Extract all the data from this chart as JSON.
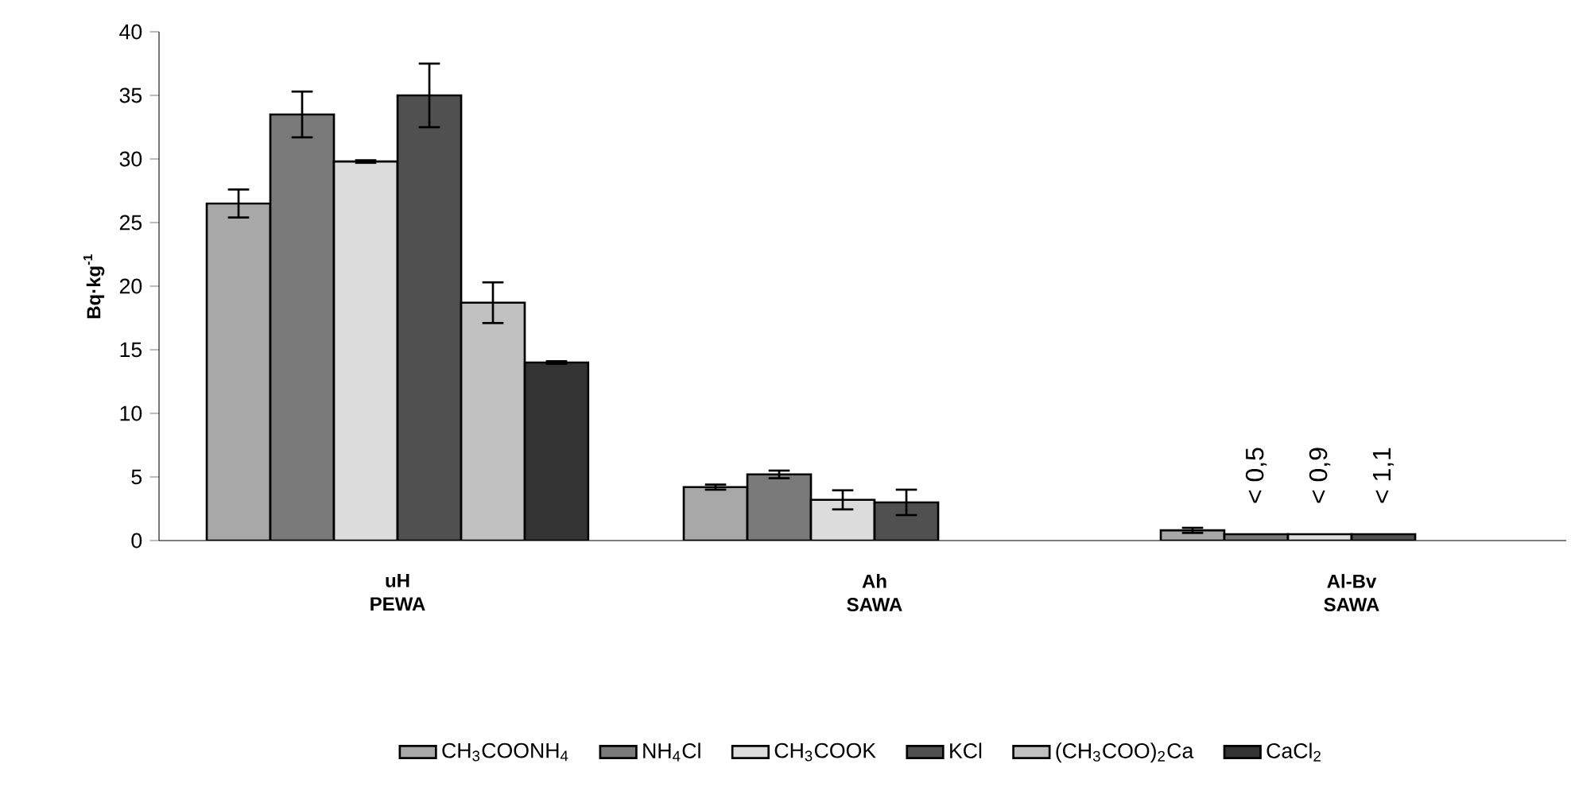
{
  "chart_data": {
    "type": "bar",
    "ylabel": "Bq·kg$^{-1}$",
    "categories": [
      "uH PEWA",
      "Ah SAWA",
      "Al-Bv SAWA"
    ],
    "ylim": [
      0,
      40
    ],
    "yticks": [
      0,
      5,
      10,
      15,
      20,
      25,
      30,
      35,
      40
    ],
    "grid": false,
    "legend": "bottom",
    "series": [
      {
        "name": "CH$_{3}$COONH$_{4}$",
        "color": "#a8a8a8",
        "values": [
          26.5,
          4.2,
          0.8
        ],
        "errors": [
          1.1,
          0.2,
          0.2
        ]
      },
      {
        "name": "NH$_{4}$Cl",
        "color": "#7a7a7a",
        "values": [
          33.5,
          5.2,
          0.5
        ],
        "errors": [
          1.8,
          0.3,
          null
        ],
        "value_labels": [
          null,
          null,
          "< 0,5"
        ]
      },
      {
        "name": "CH$_{3}$COOK",
        "color": "#dcdcdc",
        "values": [
          29.8,
          3.2,
          0.5
        ],
        "errors": [
          0.1,
          0.75,
          null
        ],
        "value_labels": [
          null,
          null,
          "< 0,9"
        ]
      },
      {
        "name": "KCl",
        "color": "#505050",
        "values": [
          35.0,
          3.0,
          0.5
        ],
        "errors": [
          2.5,
          1.0,
          null
        ],
        "value_labels": [
          null,
          null,
          "< 1,1"
        ]
      },
      {
        "name": "(CH$_{3}$COO)$_{2}$Ca",
        "color": "#c0c0c0",
        "values": [
          18.7,
          null,
          null
        ],
        "errors": [
          1.6,
          null,
          null
        ]
      },
      {
        "name": "CaCl$_{2}$",
        "color": "#333333",
        "values": [
          14.0,
          null,
          null
        ],
        "errors": [
          0.1,
          null,
          null
        ]
      }
    ]
  }
}
